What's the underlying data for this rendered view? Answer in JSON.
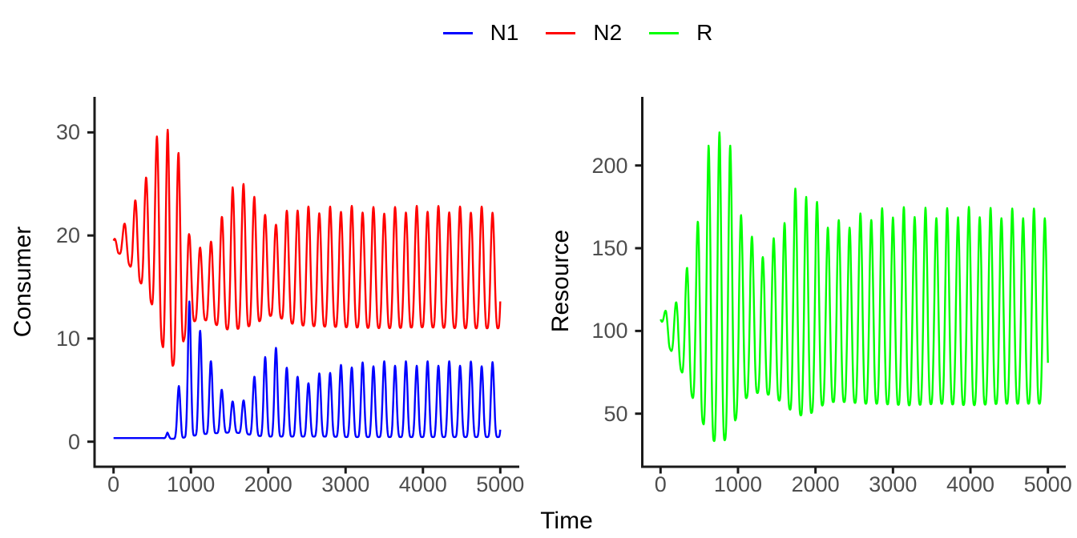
{
  "chart_data": {
    "type": "line",
    "title": "",
    "xlabel": "Time",
    "xlim": [
      0,
      5000
    ],
    "x_ticks": [
      "0",
      "1000",
      "2000",
      "3000",
      "4000",
      "5000"
    ],
    "x_tick_values": [
      0,
      1000,
      2000,
      3000,
      4000,
      5000
    ],
    "grid": false,
    "legend": {
      "position": "top",
      "entries": [
        {
          "label": "N1",
          "color": "#0000ff"
        },
        {
          "label": "N2",
          "color": "#ff0000"
        },
        {
          "label": "R",
          "color": "#00ff00"
        }
      ]
    },
    "colors": {
      "axis_line": "#1a1a1a",
      "tick_text": "#4d4d4d",
      "title_text": "#000000"
    },
    "panels": [
      {
        "ylabel": "Consumer",
        "ylim": [
          0,
          31.5
        ],
        "y_ticks": [
          "0",
          "10",
          "20",
          "30"
        ],
        "y_tick_values": [
          0,
          10,
          20,
          30
        ],
        "series": [
          {
            "name": "N1",
            "color": "#0000ff",
            "oscillation": {
              "period": 140,
              "peak_t0": 700,
              "sharpness": 2.4,
              "alternation": 0.06
            },
            "envelope": [
              [
                0,
                0.35,
                0.35
              ],
              [
                640,
                0.35,
                0.35
              ],
              [
                695,
                0.3,
                0.9
              ],
              [
                750,
                0.28,
                0.32
              ],
              [
                840,
                0.3,
                5.6
              ],
              [
                980,
                0.5,
                13.6
              ],
              [
                1120,
                0.7,
                11.4
              ],
              [
                1260,
                0.8,
                7.8
              ],
              [
                1400,
                0.85,
                5.3
              ],
              [
                1540,
                0.9,
                3.9
              ],
              [
                1680,
                0.8,
                4.2
              ],
              [
                1820,
                0.6,
                6.3
              ],
              [
                1960,
                0.5,
                8.7
              ],
              [
                2100,
                0.5,
                9.1
              ],
              [
                2240,
                0.5,
                7.6
              ],
              [
                2380,
                0.5,
                6.3
              ],
              [
                2520,
                0.5,
                6.0
              ],
              [
                2700,
                0.5,
                6.8
              ],
              [
                3000,
                0.45,
                7.6
              ],
              [
                3500,
                0.45,
                7.8
              ],
              [
                4000,
                0.45,
                7.8
              ],
              [
                4500,
                0.45,
                7.8
              ],
              [
                5000,
                0.45,
                7.7
              ]
            ]
          },
          {
            "name": "N2",
            "color": "#ff0000",
            "oscillation": {
              "period": 140,
              "peak_t0": 0,
              "sharpness": 1.6,
              "alternation": 0.05
            },
            "envelope": [
              [
                0,
                19.5,
                19.5
              ],
              [
                60,
                18.3,
                20.6
              ],
              [
                140,
                17.9,
                21.3
              ],
              [
                280,
                16.2,
                23.4
              ],
              [
                420,
                14.6,
                26.2
              ],
              [
                560,
                12.2,
                29.6
              ],
              [
                700,
                6.6,
                31.5
              ],
              [
                840,
                8.2,
                28.0
              ],
              [
                980,
                11.5,
                20.5
              ],
              [
                1130,
                11.9,
                18.7
              ],
              [
                1270,
                11.6,
                19.9
              ],
              [
                1400,
                11.0,
                21.8
              ],
              [
                1540,
                10.8,
                25.4
              ],
              [
                1680,
                11.1,
                25.0
              ],
              [
                1820,
                11.3,
                24.4
              ],
              [
                1960,
                12.1,
                22.0
              ],
              [
                2100,
                12.3,
                21.5
              ],
              [
                2240,
                11.6,
                22.4
              ],
              [
                2380,
                11.3,
                23.0
              ],
              [
                2600,
                11.2,
                22.7
              ],
              [
                3000,
                11.1,
                22.9
              ],
              [
                3500,
                11.0,
                22.7
              ],
              [
                4000,
                11.1,
                22.9
              ],
              [
                4500,
                11.0,
                22.8
              ],
              [
                5000,
                11.0,
                22.8
              ]
            ]
          }
        ]
      },
      {
        "ylabel": "Resource",
        "ylim": [
          31,
          231
        ],
        "y_ticks": [
          "50",
          "100",
          "150",
          "200"
        ],
        "y_tick_values": [
          50,
          100,
          150,
          200
        ],
        "series": [
          {
            "name": "R",
            "color": "#00ff00",
            "oscillation": {
              "period": 140,
              "peak_t0": 60,
              "sharpness": 1.6,
              "alternation": 0.05
            },
            "envelope": [
              [
                0,
                107,
                107
              ],
              [
                60,
                100,
                112
              ],
              [
                110,
                90,
                117
              ],
              [
                200,
                83,
                119
              ],
              [
                340,
                68,
                138
              ],
              [
                480,
                52,
                172
              ],
              [
                620,
                36,
                212
              ],
              [
                760,
                31,
                230
              ],
              [
                900,
                37,
                212
              ],
              [
                1040,
                56,
                176
              ],
              [
                1180,
                63,
                157
              ],
              [
                1320,
                62,
                149
              ],
              [
                1460,
                61,
                156
              ],
              [
                1600,
                55,
                171
              ],
              [
                1740,
                50,
                186
              ],
              [
                1880,
                48,
                188
              ],
              [
                2020,
                53,
                178
              ],
              [
                2160,
                57,
                168
              ],
              [
                2300,
                57,
                167
              ],
              [
                2440,
                57,
                168
              ],
              [
                2580,
                56,
                171
              ],
              [
                2800,
                56,
                174
              ],
              [
                3200,
                55,
                175
              ],
              [
                3600,
                56,
                174
              ],
              [
                4000,
                55,
                175
              ],
              [
                4400,
                56,
                174
              ],
              [
                5000,
                56,
                174
              ]
            ]
          }
        ]
      }
    ]
  }
}
